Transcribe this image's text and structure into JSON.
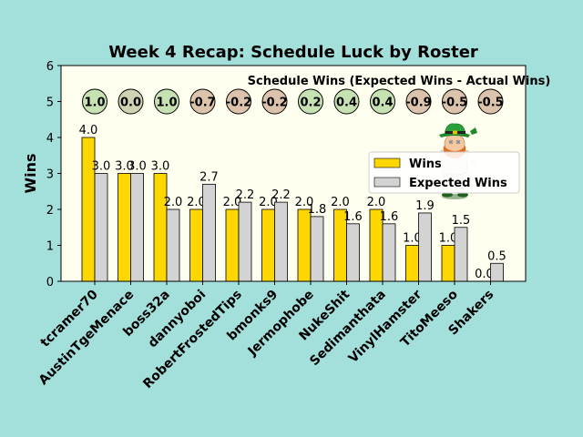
{
  "chart_data": {
    "type": "bar",
    "title": "Week 4 Recap: Schedule Luck by Roster",
    "xlabel": "",
    "ylabel": "Wins",
    "ylim": [
      0,
      6
    ],
    "yticks": [
      "0",
      "1",
      "2",
      "3",
      "4",
      "5",
      "6"
    ],
    "categories": [
      "tcramer70",
      "AustinTgeMenace",
      "boss32a",
      "dannyoboi",
      "RobertFrostedTips",
      "bmonks9",
      "Jermophobe",
      "NukeShit",
      "Sedimanthata",
      "VinylHamster",
      "TitoMeeso",
      "Shakers"
    ],
    "series": [
      {
        "name": "Wins",
        "color": "#ffd700",
        "values": [
          4.0,
          3.0,
          3.0,
          2.0,
          2.0,
          2.0,
          2.0,
          2.0,
          2.0,
          1.0,
          1.0,
          0.0
        ],
        "labels": [
          "4.0",
          "3.0",
          "3.0",
          "2.0",
          "2.0",
          "2.0",
          "2.0",
          "2.0",
          "2.0",
          "1.0",
          "1.0",
          "0.0"
        ]
      },
      {
        "name": "Expected Wins",
        "color": "#d3d3d3",
        "values": [
          3.0,
          3.0,
          2.0,
          2.7,
          2.2,
          2.2,
          1.8,
          1.6,
          1.6,
          1.9,
          1.5,
          0.5
        ],
        "labels": [
          "3.0",
          "3.0",
          "2.0",
          "2.7",
          "2.2",
          "2.2",
          "1.8",
          "1.6",
          "1.6",
          "1.9",
          "1.5",
          "0.5"
        ]
      }
    ],
    "schedule_luck": {
      "title": "Schedule Wins (Expected Wins - Actual Wins)",
      "y": 5,
      "values": [
        1.0,
        0.0,
        1.0,
        -0.7,
        -0.2,
        -0.2,
        0.2,
        0.4,
        0.4,
        -0.9,
        -0.5,
        -0.5
      ],
      "labels": [
        "1.0",
        "0.0",
        "1.0",
        "-0.7",
        "-0.2",
        "-0.2",
        "0.2",
        "0.4",
        "0.4",
        "-0.9",
        "-0.5",
        "-0.5"
      ]
    },
    "legend_position": "right",
    "grid": false,
    "mascot_icon": "leprechaun-icon"
  }
}
